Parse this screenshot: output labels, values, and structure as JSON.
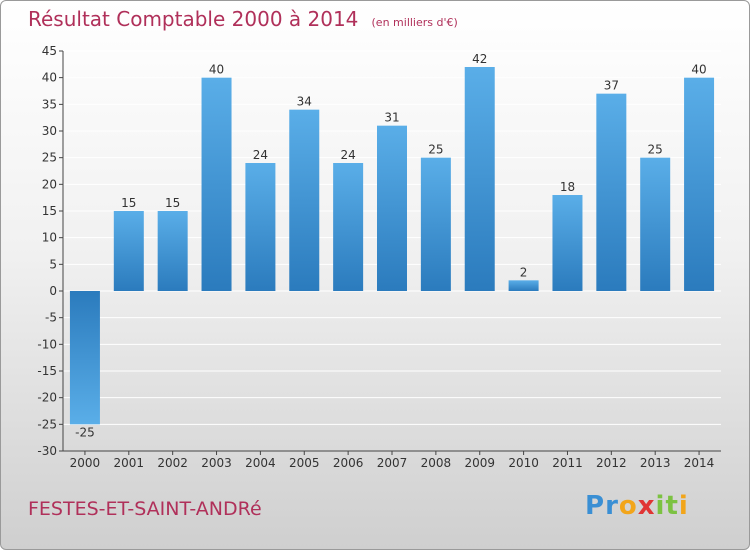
{
  "chart_data": {
    "type": "bar",
    "title": "Résultat Comptable 2000 à 2014",
    "subtitle": "(en milliers d'€)",
    "categories": [
      "2000",
      "2001",
      "2002",
      "2003",
      "2004",
      "2005",
      "2006",
      "2007",
      "2008",
      "2009",
      "2010",
      "2011",
      "2012",
      "2013",
      "2014"
    ],
    "values": [
      -25,
      15,
      15,
      40,
      24,
      34,
      24,
      31,
      25,
      42,
      2,
      18,
      37,
      25,
      40
    ],
    "ylim": [
      -30,
      45
    ],
    "yticks": [
      45,
      40,
      35,
      30,
      25,
      20,
      15,
      10,
      5,
      0,
      -5,
      -10,
      -15,
      -20,
      -25,
      -30
    ],
    "grid": true,
    "bar_color_light": "#5aaee8",
    "bar_color_dark": "#2b7bbd"
  },
  "footer": {
    "commune": "FESTES-ET-SAINT-ANDRé",
    "logo_letters": [
      "P",
      "r",
      "o",
      "x",
      "i",
      "t",
      "i"
    ],
    "logo_colors": [
      "#3a8fd4",
      "#3a8fd4",
      "#f2a51a",
      "#e03434",
      "#7cc242",
      "#7cc242",
      "#f2a51a"
    ]
  },
  "colors": {
    "title": "#b0305a",
    "grid": "#ffffff",
    "axis": "#444444"
  }
}
